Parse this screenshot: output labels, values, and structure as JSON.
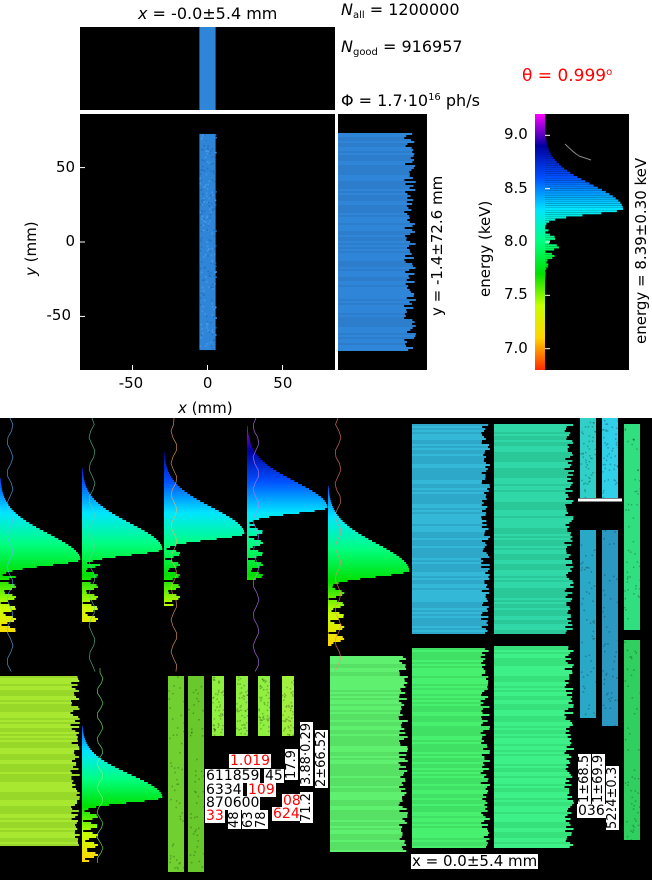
{
  "chart_data": {
    "type": "heatmap",
    "header": {
      "x_stat": "-0.0±5.4 mm",
      "n_all_value": "1200000",
      "n_good_value": "916957",
      "flux_mantissa": "1.7·10",
      "flux_exponent": "16",
      "flux_unit": "ph/s",
      "theta_text": "θ = 0.999",
      "theta_unit": "o"
    },
    "xy_map": {
      "xlabel_var": "x",
      "xlabel_unit": " (mm)",
      "ylabel_var": "y",
      "ylabel_unit": " (mm)",
      "xlim": [
        -85,
        85
      ],
      "ylim": [
        -86,
        86
      ],
      "x_ticks": [
        -50,
        0,
        50
      ],
      "y_ticks": [
        50,
        0,
        -50
      ],
      "beam_x_range": [
        -5.4,
        5.4
      ],
      "beam_y_range": [
        -72.6,
        72.6
      ],
      "beam_color": "#2f86d8"
    },
    "y_histogram": {
      "label": "y = -1.4±72.6 mm"
    },
    "energy_histogram": {
      "ylabel": "energy (keV)",
      "stat_label": "energy = 8.39±0.30 keV",
      "ylim": [
        6.8,
        9.2
      ],
      "ticks": [
        9.0,
        8.5,
        8.0,
        7.5,
        7.0
      ],
      "peak": 8.3,
      "sigma": 0.12
    },
    "bottom_labels": {
      "r1": "1.019",
      "r2a": "611859",
      "r2b": "45",
      "r3a": "6334",
      "r3b": "109",
      "r4a": "870600",
      "r4b": "085",
      "r5a": "33",
      "r5b": "6240",
      "v1": "3.88·0.29",
      "v2": "2±66.52",
      "v3": "17.9",
      "v4": "71.2",
      "v5": "48",
      "v6": "63",
      "v7": "78",
      "b1": "1±68.5",
      "b2": "1±69.9",
      "b3": "24±0.3",
      "b4": "036",
      "b5": "52",
      "x_stat_bottom": "x = 0.0±5.4 mm"
    },
    "colors": {
      "background": "#000000",
      "beam_blue": "#2f86d8",
      "energy_cmap": [
        "#ff2a00",
        "#ffd400",
        "#c8ff00",
        "#00e000",
        "#00ff80",
        "#00e5ff",
        "#0050ff",
        "#0000a0",
        "#ff00ff"
      ]
    }
  }
}
